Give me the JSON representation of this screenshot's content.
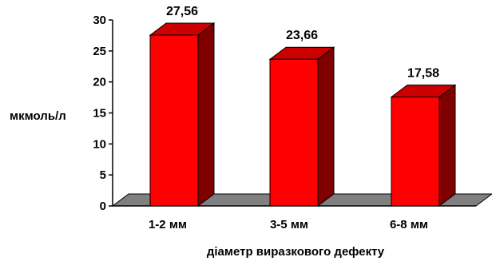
{
  "chart_data": {
    "type": "bar",
    "style": "3d",
    "title": "",
    "xlabel": "діаметр виразкового дефекту",
    "ylabel": "мкмоль/л",
    "categories": [
      "1-2 мм",
      "3-5 мм",
      "6-8 мм"
    ],
    "values": [
      27.56,
      23.66,
      17.58
    ],
    "value_labels": [
      "27,56",
      "23,66",
      "17,58"
    ],
    "ylim": [
      0,
      30
    ],
    "yticks": [
      "0",
      "5",
      "10",
      "15",
      "20",
      "25",
      "30"
    ],
    "grid": false,
    "legend": "none",
    "colors": {
      "bar_front": "#ff0000",
      "bar_top": "#cc0000",
      "bar_side": "#800000",
      "floor": "#808080",
      "axis": "#000000"
    }
  }
}
